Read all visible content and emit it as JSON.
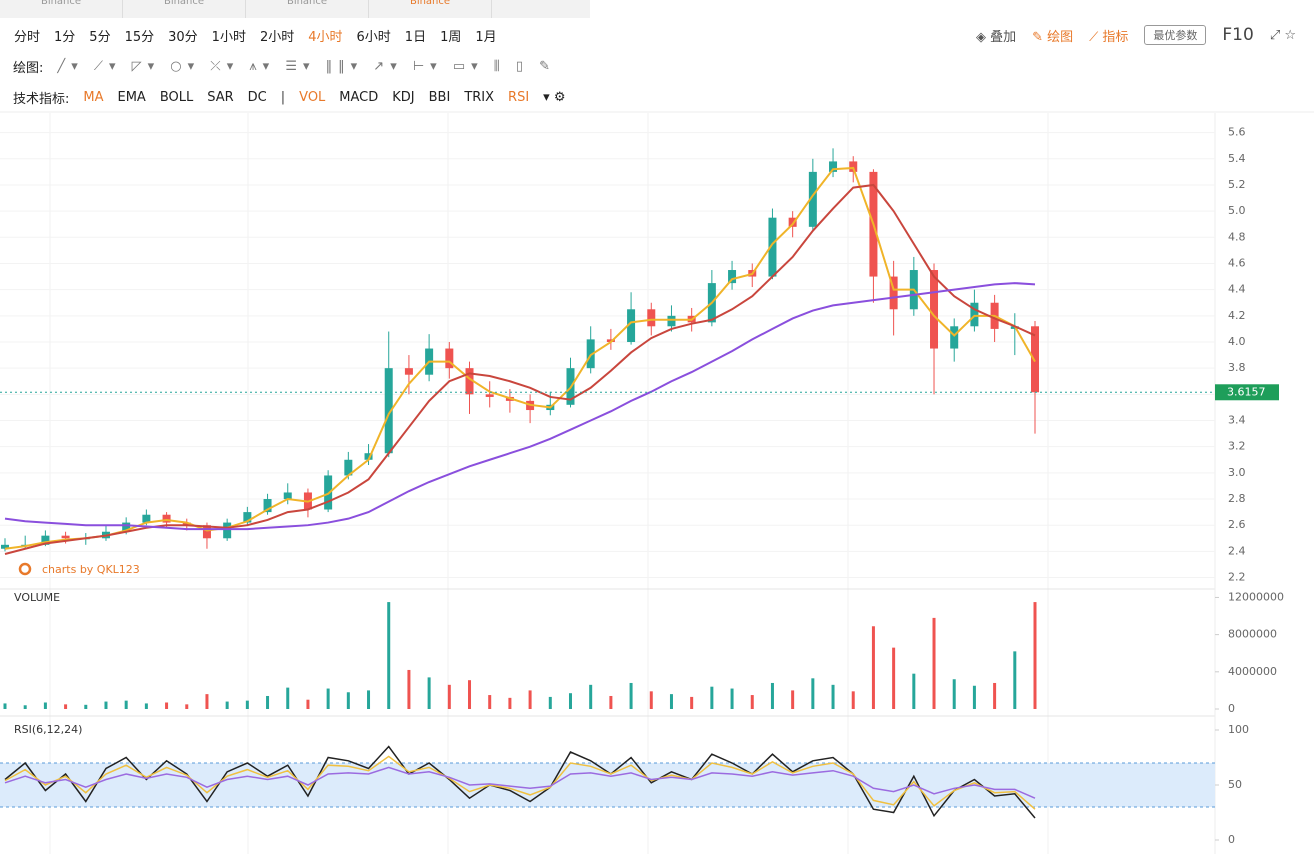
{
  "tabs": {
    "items": [
      "Binance",
      "Binance",
      "Binance",
      "Binance"
    ],
    "active": 3
  },
  "toolbar": {
    "timeframes": [
      "分时",
      "1分",
      "5分",
      "15分",
      "30分",
      "1小时",
      "2小时",
      "4小时",
      "6小时",
      "1日",
      "1周",
      "1月"
    ],
    "active_timeframe": 7,
    "right": [
      "叠加",
      "绘图",
      "指标"
    ],
    "params_button": "最优参数",
    "f10": "F10",
    "draw_label": "绘图:",
    "indicator_label": "技术指标:",
    "main_indicators": [
      "MA",
      "EMA",
      "BOLL",
      "SAR",
      "DC"
    ],
    "active_main": [
      0
    ],
    "sub_indicators": [
      "VOL",
      "MACD",
      "KDJ",
      "BBI",
      "TRIX",
      "RSI"
    ],
    "active_sub": [
      0,
      5
    ]
  },
  "chart_data": {
    "type": "candlestick",
    "watermark": "charts by QKL123",
    "candles": [
      [
        2.42,
        2.5,
        2.4,
        2.45
      ],
      [
        2.45,
        2.52,
        2.42,
        2.45
      ],
      [
        2.45,
        2.56,
        2.44,
        2.52
      ],
      [
        2.52,
        2.55,
        2.46,
        2.5
      ],
      [
        2.5,
        2.54,
        2.45,
        2.5
      ],
      [
        2.5,
        2.6,
        2.48,
        2.55
      ],
      [
        2.55,
        2.66,
        2.53,
        2.62
      ],
      [
        2.62,
        2.72,
        2.6,
        2.68
      ],
      [
        2.68,
        2.7,
        2.58,
        2.62
      ],
      [
        2.62,
        2.65,
        2.56,
        2.6
      ],
      [
        2.6,
        2.62,
        2.42,
        2.5
      ],
      [
        2.5,
        2.65,
        2.48,
        2.62
      ],
      [
        2.62,
        2.74,
        2.6,
        2.7
      ],
      [
        2.7,
        2.84,
        2.68,
        2.8
      ],
      [
        2.8,
        2.92,
        2.76,
        2.85
      ],
      [
        2.85,
        2.88,
        2.66,
        2.72
      ],
      [
        2.72,
        3.02,
        2.7,
        2.98
      ],
      [
        2.98,
        3.16,
        2.95,
        3.1
      ],
      [
        3.1,
        3.22,
        3.06,
        3.15
      ],
      [
        3.15,
        4.08,
        3.12,
        3.8
      ],
      [
        3.8,
        3.9,
        3.6,
        3.75
      ],
      [
        3.75,
        4.06,
        3.7,
        3.95
      ],
      [
        3.95,
        4.0,
        3.72,
        3.8
      ],
      [
        3.8,
        3.85,
        3.45,
        3.6
      ],
      [
        3.6,
        3.7,
        3.5,
        3.58
      ],
      [
        3.58,
        3.64,
        3.46,
        3.55
      ],
      [
        3.55,
        3.6,
        3.38,
        3.48
      ],
      [
        3.48,
        3.62,
        3.44,
        3.52
      ],
      [
        3.52,
        3.88,
        3.5,
        3.8
      ],
      [
        3.8,
        4.12,
        3.76,
        4.02
      ],
      [
        4.02,
        4.1,
        3.94,
        4.0
      ],
      [
        4.0,
        4.38,
        3.98,
        4.25
      ],
      [
        4.25,
        4.3,
        4.05,
        4.12
      ],
      [
        4.12,
        4.28,
        4.08,
        4.2
      ],
      [
        4.2,
        4.26,
        4.08,
        4.15
      ],
      [
        4.15,
        4.55,
        4.12,
        4.45
      ],
      [
        4.45,
        4.62,
        4.4,
        4.55
      ],
      [
        4.55,
        4.6,
        4.42,
        4.5
      ],
      [
        4.5,
        5.02,
        4.48,
        4.95
      ],
      [
        4.95,
        5.0,
        4.8,
        4.88
      ],
      [
        4.88,
        5.4,
        4.85,
        5.3
      ],
      [
        5.3,
        5.48,
        5.26,
        5.38
      ],
      [
        5.38,
        5.42,
        5.22,
        5.3
      ],
      [
        5.3,
        5.32,
        4.3,
        4.5
      ],
      [
        4.5,
        4.62,
        4.05,
        4.25
      ],
      [
        4.25,
        4.65,
        4.2,
        4.55
      ],
      [
        4.55,
        4.6,
        3.6,
        3.95
      ],
      [
        3.95,
        4.18,
        3.85,
        4.12
      ],
      [
        4.12,
        4.4,
        4.08,
        4.3
      ],
      [
        4.3,
        4.36,
        4.0,
        4.1
      ],
      [
        4.1,
        4.22,
        3.9,
        4.12
      ],
      [
        4.12,
        4.16,
        3.3,
        3.6157
      ]
    ],
    "up_color": "#26a69a",
    "down_color": "#ef5350",
    "ylim": [
      2.12,
      5.75
    ],
    "yticks": [
      2.2,
      2.4,
      2.6,
      2.8,
      {
        "value": 3,
        "label": "3.0"
      },
      3.2,
      3.4,
      3.6,
      3.8,
      {
        "value": 4,
        "label": "4.0"
      },
      4.2,
      4.4,
      4.6,
      4.8,
      {
        "value": 5,
        "label": "5.0"
      },
      5.2,
      5.4,
      5.6
    ],
    "series": [
      {
        "color": "#f0b429",
        "values": [
          2.42,
          2.44,
          2.47,
          2.49,
          2.5,
          2.52,
          2.56,
          2.62,
          2.64,
          2.62,
          2.56,
          2.58,
          2.63,
          2.72,
          2.8,
          2.78,
          2.84,
          2.98,
          3.1,
          3.45,
          3.68,
          3.85,
          3.85,
          3.72,
          3.62,
          3.57,
          3.52,
          3.5,
          3.65,
          3.9,
          4.0,
          4.15,
          4.17,
          4.17,
          4.17,
          4.3,
          4.48,
          4.52,
          4.75,
          4.9,
          5.12,
          5.32,
          5.33,
          4.9,
          4.4,
          4.4,
          4.2,
          4.05,
          4.2,
          4.2,
          4.12,
          3.85
        ]
      },
      {
        "color": "#c9463d",
        "values": [
          2.38,
          2.42,
          2.46,
          2.48,
          2.5,
          2.52,
          2.55,
          2.58,
          2.6,
          2.6,
          2.59,
          2.58,
          2.6,
          2.64,
          2.7,
          2.72,
          2.78,
          2.85,
          2.95,
          3.15,
          3.35,
          3.55,
          3.7,
          3.76,
          3.74,
          3.7,
          3.65,
          3.58,
          3.56,
          3.65,
          3.78,
          3.92,
          4.03,
          4.1,
          4.14,
          4.17,
          4.25,
          4.35,
          4.5,
          4.65,
          4.85,
          5.02,
          5.18,
          5.2,
          5.0,
          4.75,
          4.5,
          4.35,
          4.25,
          4.18,
          4.12,
          4.05
        ]
      },
      {
        "color": "#8a4fdd",
        "values": [
          2.65,
          2.63,
          2.62,
          2.61,
          2.6,
          2.6,
          2.6,
          2.59,
          2.58,
          2.57,
          2.57,
          2.57,
          2.57,
          2.58,
          2.59,
          2.6,
          2.62,
          2.65,
          2.7,
          2.78,
          2.86,
          2.93,
          2.99,
          3.05,
          3.1,
          3.15,
          3.2,
          3.26,
          3.33,
          3.4,
          3.47,
          3.55,
          3.62,
          3.7,
          3.77,
          3.85,
          3.93,
          4.02,
          4.1,
          4.18,
          4.24,
          4.28,
          4.3,
          4.32,
          4.34,
          4.36,
          4.38,
          4.4,
          4.42,
          4.44,
          4.45,
          4.44
        ]
      }
    ],
    "volume": {
      "title": "VOLUME",
      "values": [
        600000,
        400000,
        700000,
        500000,
        450000,
        800000,
        900000,
        600000,
        700000,
        500000,
        1600000,
        800000,
        900000,
        1400000,
        2300000,
        1000000,
        2200000,
        1800000,
        2000000,
        11500000,
        4200000,
        3400000,
        2600000,
        3100000,
        1500000,
        1200000,
        2000000,
        1300000,
        1700000,
        2600000,
        1400000,
        2800000,
        1900000,
        1600000,
        1300000,
        2400000,
        2200000,
        1500000,
        2800000,
        2000000,
        3300000,
        2600000,
        1900000,
        8900000,
        6600000,
        3800000,
        9800000,
        3200000,
        2500000,
        2800000,
        6200000,
        11500000
      ],
      "ylim": [
        0,
        12800000
      ],
      "yticks": [
        0,
        4000000,
        8000000,
        12000000
      ]
    },
    "rsi": {
      "title": "RSI(6,12,24)",
      "ylim": [
        0,
        100
      ],
      "yticks": [
        0,
        50,
        100
      ],
      "bands": [
        30,
        70
      ],
      "band_color": "#dcebfb",
      "series": [
        {
          "color": "#222222",
          "values": [
            55,
            70,
            45,
            60,
            35,
            65,
            75,
            55,
            72,
            60,
            35,
            62,
            70,
            58,
            68,
            40,
            75,
            72,
            65,
            85,
            60,
            70,
            55,
            38,
            50,
            45,
            35,
            48,
            80,
            72,
            60,
            75,
            52,
            62,
            55,
            78,
            70,
            60,
            78,
            62,
            72,
            75,
            60,
            28,
            25,
            58,
            22,
            45,
            55,
            40,
            42,
            20
          ]
        },
        {
          "color": "#f0c040",
          "values": [
            54,
            64,
            50,
            58,
            43,
            60,
            68,
            57,
            66,
            59,
            43,
            58,
            64,
            57,
            63,
            46,
            68,
            67,
            63,
            76,
            62,
            66,
            56,
            44,
            50,
            47,
            41,
            48,
            70,
            67,
            60,
            68,
            54,
            59,
            55,
            70,
            66,
            60,
            71,
            61,
            67,
            70,
            60,
            36,
            32,
            53,
            31,
            45,
            52,
            43,
            44,
            28
          ]
        },
        {
          "color": "#9b6be0",
          "values": [
            52,
            58,
            52,
            55,
            48,
            55,
            60,
            56,
            60,
            57,
            48,
            55,
            58,
            55,
            58,
            50,
            60,
            61,
            60,
            66,
            60,
            62,
            57,
            50,
            51,
            49,
            47,
            49,
            60,
            61,
            58,
            61,
            55,
            57,
            55,
            61,
            60,
            58,
            62,
            59,
            61,
            63,
            58,
            47,
            44,
            50,
            42,
            47,
            50,
            46,
            46,
            38
          ]
        }
      ]
    }
  }
}
